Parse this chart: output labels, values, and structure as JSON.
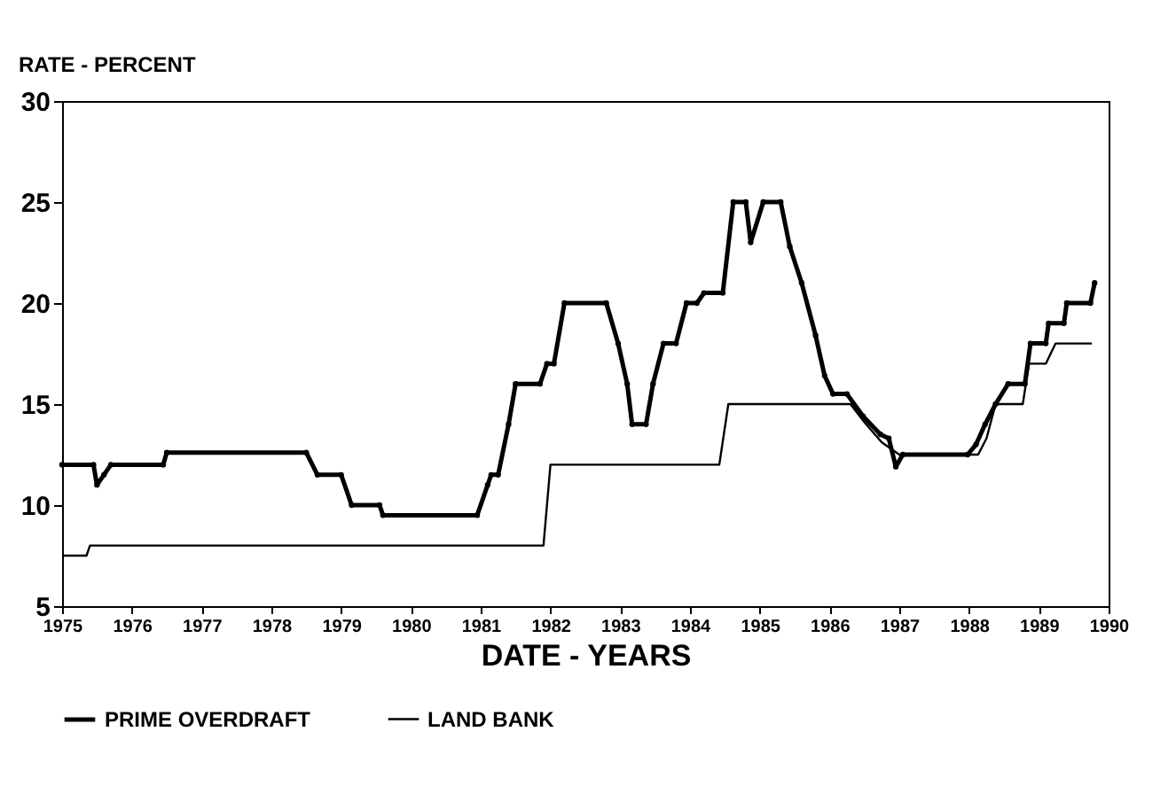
{
  "chart_data": {
    "type": "line",
    "xlabel": "DATE - YEARS",
    "ylabel": "RATE - PERCENT",
    "xlim": [
      1975,
      1990
    ],
    "xticks": [
      1975,
      1976,
      1977,
      1978,
      1979,
      1980,
      1981,
      1982,
      1983,
      1984,
      1985,
      1986,
      1987,
      1988,
      1989,
      1990
    ],
    "ylim": [
      5,
      30
    ],
    "yticks": [
      5,
      10,
      15,
      20,
      25,
      30
    ],
    "grid": false,
    "legend": "bottom",
    "series": [
      {
        "name": "PRIME OVERDRAFT",
        "color": "#000000",
        "marker": "circle",
        "line_style": "solid",
        "x": [
          1975.0,
          1975.45,
          1975.5,
          1975.6,
          1975.7,
          1976.45,
          1976.5,
          1978.5,
          1978.66,
          1979.0,
          1979.15,
          1979.55,
          1979.6,
          1980.95,
          1981.1,
          1981.15,
          1981.25,
          1981.4,
          1981.5,
          1981.85,
          1981.95,
          1982.05,
          1982.2,
          1982.8,
          1982.97,
          1983.1,
          1983.17,
          1983.37,
          1983.47,
          1983.62,
          1983.8,
          1983.95,
          1984.1,
          1984.2,
          1984.47,
          1984.62,
          1984.8,
          1984.87,
          1985.05,
          1985.3,
          1985.43,
          1985.6,
          1985.8,
          1985.93,
          1986.05,
          1986.25,
          1986.48,
          1986.73,
          1986.85,
          1986.95,
          1987.05,
          1987.98,
          1988.1,
          1988.23,
          1988.38,
          1988.56,
          1988.8,
          1988.88,
          1989.1,
          1989.14,
          1989.36,
          1989.4,
          1989.74,
          1989.8
        ],
        "values": [
          12.0,
          12.0,
          11.0,
          11.5,
          12.0,
          12.0,
          12.6,
          12.6,
          11.5,
          11.5,
          10.0,
          10.0,
          9.5,
          9.5,
          11.0,
          11.5,
          11.5,
          14.0,
          16.0,
          16.0,
          17.0,
          17.0,
          20.0,
          20.0,
          18.0,
          16.0,
          14.0,
          14.0,
          16.0,
          18.0,
          18.0,
          20.0,
          20.0,
          20.5,
          20.5,
          25.0,
          25.0,
          23.0,
          25.0,
          25.0,
          22.8,
          21.0,
          18.4,
          16.4,
          15.5,
          15.5,
          14.4,
          13.5,
          13.3,
          11.9,
          12.5,
          12.5,
          13.0,
          14.0,
          15.0,
          16.0,
          16.0,
          18.0,
          18.0,
          19.0,
          19.0,
          20.0,
          20.0,
          21.0
        ]
      },
      {
        "name": "LAND BANK",
        "color": "#000000",
        "marker": "none",
        "line_style": "solid",
        "x": [
          1975.0,
          1975.35,
          1975.4,
          1981.9,
          1982.0,
          1984.42,
          1984.55,
          1986.3,
          1986.5,
          1986.75,
          1987.0,
          1988.13,
          1988.25,
          1988.38,
          1988.77,
          1988.86,
          1989.1,
          1989.24,
          1989.76
        ],
        "values": [
          7.5,
          7.5,
          8.0,
          8.0,
          12.0,
          12.0,
          15.0,
          15.0,
          14.1,
          13.1,
          12.5,
          12.5,
          13.3,
          15.0,
          15.0,
          17.0,
          17.0,
          18.0,
          18.0
        ]
      }
    ]
  }
}
